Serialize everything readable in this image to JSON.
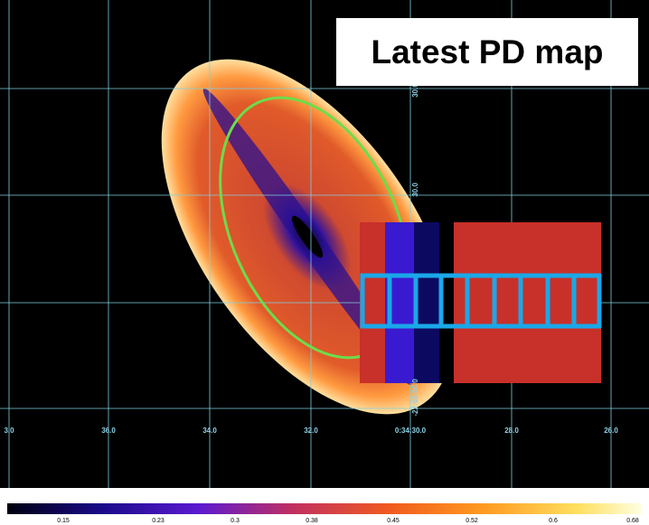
{
  "title": "Latest PD map",
  "x_axis_labels": [
    "3.0",
    "36.0",
    "34.0",
    "32.0",
    "0:34:30.0",
    "28.0",
    "26.0"
  ],
  "y_axis_labels": [
    "30.0",
    "30.0",
    "-22:00:00.0"
  ],
  "colorbar_labels": [
    "0.15",
    "0.23",
    "0.3",
    "0.38",
    "0.45",
    "0.52",
    "0.6",
    "0.68"
  ]
}
